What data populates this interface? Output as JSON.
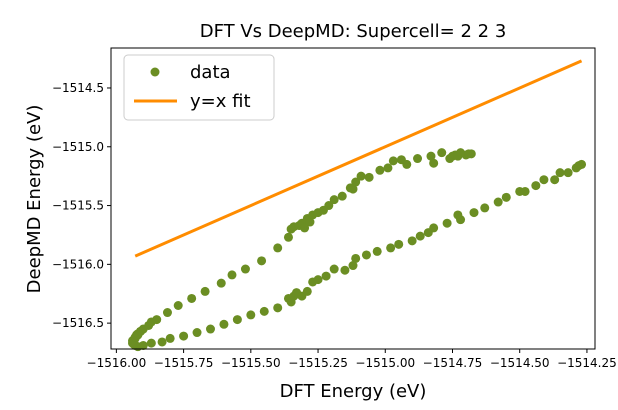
{
  "chart_data": {
    "type": "scatter",
    "title": "DFT Vs DeepMD: Supercell= 2 2 3",
    "xlabel": "DFT Energy (eV)",
    "ylabel": "DeepMD Energy (eV)",
    "xlim": [
      -1516.02,
      -1514.22
    ],
    "ylim": [
      -1516.72,
      -1514.16
    ],
    "xticks": [
      -1516.0,
      -1515.75,
      -1515.5,
      -1515.25,
      -1515.0,
      -1514.75,
      -1514.5,
      -1514.25
    ],
    "xtick_labels": [
      "−1516.00",
      "−1515.75",
      "−1515.50",
      "−1515.25",
      "−1515.00",
      "−1514.75",
      "−1514.50",
      "−1514.25"
    ],
    "yticks": [
      -1516.5,
      -1516.0,
      -1515.5,
      -1515.0,
      -1514.5
    ],
    "ytick_labels": [
      "−1516.5",
      "−1516.0",
      "−1515.5",
      "−1515.0",
      "−1514.5"
    ],
    "legend_position": "top-left",
    "grid": false,
    "series": [
      {
        "name": "data",
        "kind": "scatter",
        "color": "#6b8e23",
        "x": [
          -1515.93,
          -1515.92,
          -1515.91,
          -1515.9,
          -1515.88,
          -1515.87,
          -1515.85,
          -1515.81,
          -1515.77,
          -1515.72,
          -1515.67,
          -1515.61,
          -1515.57,
          -1515.52,
          -1515.46,
          -1515.4,
          -1515.36,
          -1515.35,
          -1515.34,
          -1515.32,
          -1515.31,
          -1515.3,
          -1515.29,
          -1515.28,
          -1515.27,
          -1515.25,
          -1515.23,
          -1515.21,
          -1515.19,
          -1515.16,
          -1515.13,
          -1515.12,
          -1515.11,
          -1515.09,
          -1515.06,
          -1515.02,
          -1514.99,
          -1514.97,
          -1514.94,
          -1514.92,
          -1514.88,
          -1514.83,
          -1514.82,
          -1514.79,
          -1514.76,
          -1514.75,
          -1514.74,
          -1514.73,
          -1514.72,
          -1514.7,
          -1514.69,
          -1514.68,
          -1515.92,
          -1515.9,
          -1515.87,
          -1515.83,
          -1515.8,
          -1515.75,
          -1515.7,
          -1515.65,
          -1515.6,
          -1515.55,
          -1515.5,
          -1515.45,
          -1515.4,
          -1515.36,
          -1515.35,
          -1515.34,
          -1515.33,
          -1515.31,
          -1515.29,
          -1515.27,
          -1515.25,
          -1515.22,
          -1515.19,
          -1515.15,
          -1515.12,
          -1515.11,
          -1515.07,
          -1515.03,
          -1514.98,
          -1514.95,
          -1514.9,
          -1514.87,
          -1514.84,
          -1514.82,
          -1514.77,
          -1514.73,
          -1514.72,
          -1514.67,
          -1514.63,
          -1514.58,
          -1514.55,
          -1514.5,
          -1514.48,
          -1514.44,
          -1514.41,
          -1514.37,
          -1514.35,
          -1514.32,
          -1514.29,
          -1514.28,
          -1514.27,
          -1515.93,
          -1515.935,
          -1515.94,
          -1515.94,
          -1515.935,
          -1515.93,
          -1515.925,
          -1515.92,
          -1515.91
        ],
        "y": [
          -1516.63,
          -1516.6,
          -1516.57,
          -1516.55,
          -1516.52,
          -1516.49,
          -1516.47,
          -1516.41,
          -1516.35,
          -1516.29,
          -1516.23,
          -1516.16,
          -1516.09,
          -1516.04,
          -1515.97,
          -1515.86,
          -1515.77,
          -1515.7,
          -1515.68,
          -1515.67,
          -1515.65,
          -1515.69,
          -1515.61,
          -1515.64,
          -1515.58,
          -1515.56,
          -1515.54,
          -1515.5,
          -1515.45,
          -1515.42,
          -1515.35,
          -1515.36,
          -1515.3,
          -1515.25,
          -1515.26,
          -1515.2,
          -1515.18,
          -1515.12,
          -1515.11,
          -1515.15,
          -1515.1,
          -1515.08,
          -1515.14,
          -1515.05,
          -1515.1,
          -1515.08,
          -1515.07,
          -1515.08,
          -1515.05,
          -1515.07,
          -1515.06,
          -1515.06,
          -1516.7,
          -1516.69,
          -1516.67,
          -1516.66,
          -1516.63,
          -1516.61,
          -1516.58,
          -1516.55,
          -1516.51,
          -1516.47,
          -1516.43,
          -1516.4,
          -1516.37,
          -1516.29,
          -1516.32,
          -1516.27,
          -1516.24,
          -1516.27,
          -1516.23,
          -1516.15,
          -1516.13,
          -1516.1,
          -1516.04,
          -1516.05,
          -1516.01,
          -1515.95,
          -1515.92,
          -1515.89,
          -1515.86,
          -1515.83,
          -1515.8,
          -1515.76,
          -1515.73,
          -1515.69,
          -1515.65,
          -1515.58,
          -1515.62,
          -1515.56,
          -1515.52,
          -1515.47,
          -1515.43,
          -1515.38,
          -1515.38,
          -1515.33,
          -1515.28,
          -1515.28,
          -1515.22,
          -1515.22,
          -1515.18,
          -1515.16,
          -1515.15,
          -1516.69,
          -1516.68,
          -1516.67,
          -1516.65,
          -1516.64,
          -1516.62,
          -1516.6,
          -1516.59,
          -1516.57
        ]
      },
      {
        "name": "y=x fit",
        "kind": "line",
        "color": "#ff8c00",
        "x": [
          -1515.93,
          -1514.27
        ],
        "y": [
          -1515.93,
          -1514.27
        ]
      }
    ]
  }
}
